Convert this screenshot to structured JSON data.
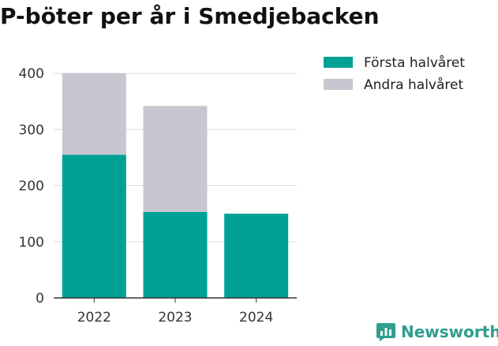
{
  "chart_data": {
    "type": "bar",
    "stacked": true,
    "title": "P-böter per år i Smedjebacken",
    "categories": [
      "2022",
      "2023",
      "2024"
    ],
    "series": [
      {
        "name": "Första halvåret",
        "values": [
          255,
          153,
          150
        ],
        "color": "#00a195"
      },
      {
        "name": "Andra halvåret",
        "values": [
          145,
          189,
          0
        ],
        "color": "#c8c7d1"
      }
    ],
    "ylim": [
      0,
      400
    ],
    "yticks": [
      0,
      100,
      200,
      300,
      400
    ],
    "grid": true,
    "legend": "top-right"
  },
  "brand": {
    "name": "Newsworthy",
    "color": "#2e9e8f",
    "icon": "newsworthy-logo-icon"
  }
}
